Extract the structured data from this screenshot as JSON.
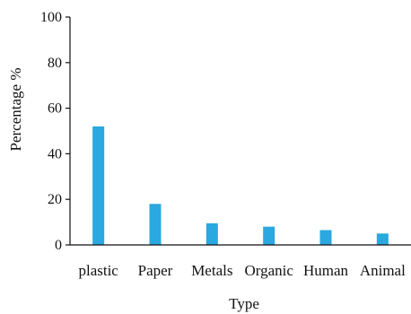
{
  "chart_data": {
    "type": "bar",
    "categories": [
      "plastic",
      "Paper",
      "Metals",
      "Organic",
      "Human",
      "Animal"
    ],
    "values": [
      52,
      18,
      9.5,
      8,
      6.5,
      5
    ],
    "xlabel": "Type",
    "ylabel": "Percentage %",
    "ylim": [
      0,
      100
    ],
    "yticks": [
      "0",
      "20",
      "40",
      "60",
      "80",
      "100"
    ],
    "grid": false,
    "legend": "none",
    "bar_color": "#2aa8df"
  }
}
